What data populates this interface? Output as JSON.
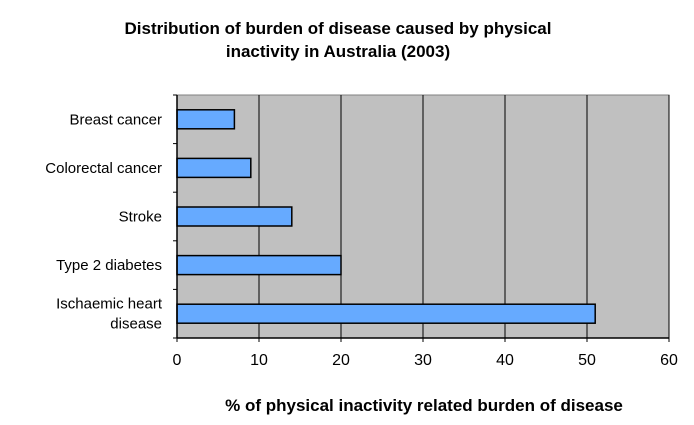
{
  "chart_data": {
    "type": "bar",
    "orientation": "horizontal",
    "title_lines": [
      "Distribution of burden of disease caused by physical",
      "inactivity in Australia (2003)"
    ],
    "xlabel": "%  of physical inactivity related burden of disease",
    "ylabel": "",
    "categories": [
      [
        "Breast cancer"
      ],
      [
        "Colorectal cancer"
      ],
      [
        "Stroke"
      ],
      [
        "Type 2 diabetes"
      ],
      [
        "Ischaemic heart",
        "disease"
      ]
    ],
    "values": [
      7,
      9,
      14,
      20,
      51
    ],
    "xlim": [
      0,
      60
    ],
    "xticks": [
      0,
      10,
      20,
      30,
      40,
      50,
      60
    ],
    "grid": "vertical",
    "legend": "none",
    "colors": {
      "bar_fill": "#66aaff",
      "bar_stroke": "#000000",
      "plot_background": "#c0c0c0",
      "gridline": "#000000"
    }
  }
}
